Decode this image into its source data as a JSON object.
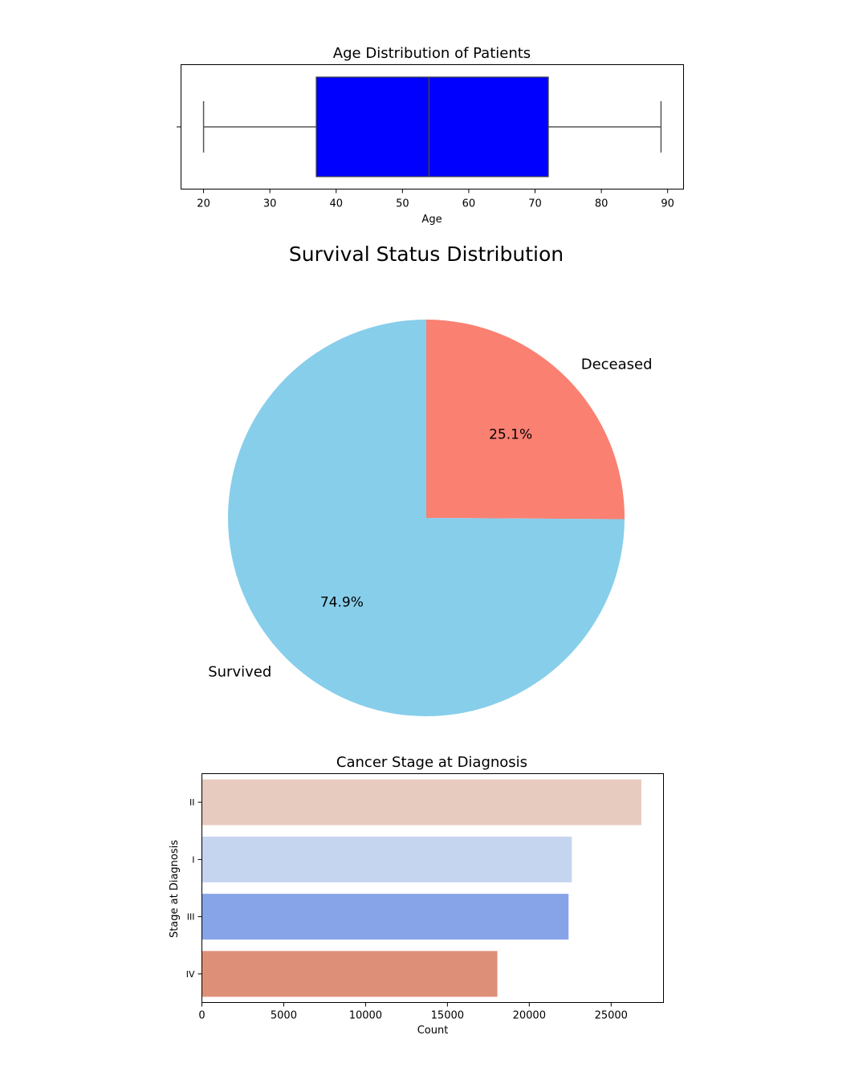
{
  "chart_data": [
    {
      "type": "boxplot",
      "title": "Age Distribution of Patients",
      "xlabel": "Age",
      "ylabel": "",
      "xlim": [
        16.6,
        92.4
      ],
      "xticks": [
        20,
        30,
        40,
        50,
        60,
        70,
        80,
        90
      ],
      "box": {
        "min": 20,
        "q1": 37,
        "median": 54,
        "q3": 72,
        "max": 89
      },
      "box_color": "#0000ff"
    },
    {
      "type": "pie",
      "title": "Survival Status Distribution",
      "slices": [
        {
          "label": "Deceased",
          "value": 25.1,
          "pct_label": "25.1%",
          "color": "#fa8072"
        },
        {
          "label": "Survived",
          "value": 74.9,
          "pct_label": "74.9%",
          "color": "#87ceeb"
        }
      ]
    },
    {
      "type": "bar",
      "orientation": "horizontal",
      "title": "Cancer Stage at Diagnosis",
      "xlabel": "Count",
      "ylabel": "Stage at Diagnosis",
      "xlim": [
        0,
        28200
      ],
      "xticks": [
        0,
        5000,
        10000,
        15000,
        20000,
        25000
      ],
      "categories": [
        "II",
        "I",
        "III",
        "IV"
      ],
      "values": [
        26850,
        22600,
        22400,
        18050
      ],
      "colors": [
        "#e8cbbf",
        "#c5d5f0",
        "#88a4e8",
        "#de8f77"
      ]
    }
  ]
}
